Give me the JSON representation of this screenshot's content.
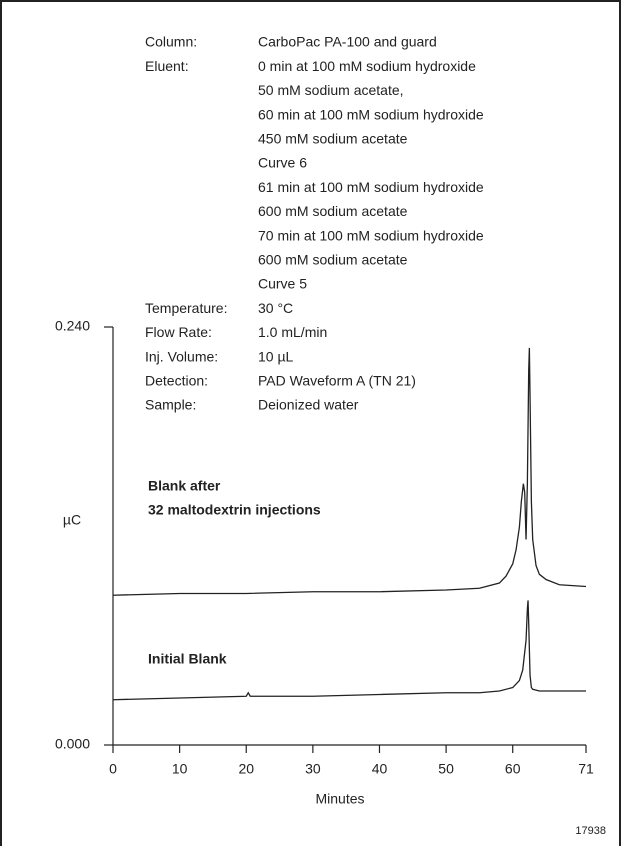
{
  "chart_data": {
    "type": "line",
    "conditions": [
      {
        "label": "Column:",
        "lines": [
          "CarboPac PA-100 and guard"
        ]
      },
      {
        "label": "Eluent:",
        "lines": [
          "0 min at 100 mM sodium hydroxide",
          "50 mM sodium acetate,",
          "60 min at 100 mM sodium hydroxide",
          "450 mM sodium acetate",
          "Curve 6",
          "61 min at 100 mM sodium hydroxide",
          "600 mM sodium acetate",
          "70 min at 100 mM sodium hydroxide",
          "600 mM sodium acetate",
          "Curve 5"
        ]
      },
      {
        "label": "Temperature:",
        "lines": [
          "30 °C"
        ]
      },
      {
        "label": "Flow Rate:",
        "lines": [
          "1.0 mL/min"
        ]
      },
      {
        "label": "Inj. Volume:",
        "lines": [
          "10 µL"
        ]
      },
      {
        "label": "Detection:",
        "lines": [
          "PAD Waveform A (TN 21)"
        ]
      },
      {
        "label": "Sample:",
        "lines": [
          "Deionized water"
        ]
      }
    ],
    "xlabel": "Minutes",
    "ylabel": "µC",
    "figure_id": "17938",
    "xlim": [
      0,
      71
    ],
    "xticks": [
      0,
      10,
      20,
      30,
      40,
      50,
      60,
      71
    ],
    "ylim": [
      0,
      0.24
    ],
    "yticks": [
      {
        "value": 0,
        "label": "0.000"
      },
      {
        "value": 0.24,
        "label": "0.240"
      }
    ],
    "series": [
      {
        "label_lines": [
          "Blank after",
          "32 maltodextrin injections"
        ],
        "color": "#222222",
        "x": [
          0,
          10,
          20,
          30,
          40,
          50,
          55,
          58,
          59,
          60,
          60.5,
          61,
          61.3,
          61.6,
          61.8,
          62.0,
          62.2,
          62.4,
          62.5,
          62.6,
          62.8,
          63,
          63.5,
          64,
          65,
          67,
          71
        ],
        "values": [
          0.086,
          0.087,
          0.087,
          0.088,
          0.088,
          0.089,
          0.09,
          0.093,
          0.097,
          0.104,
          0.112,
          0.125,
          0.14,
          0.15,
          0.145,
          0.118,
          0.15,
          0.215,
          0.228,
          0.2,
          0.14,
          0.118,
          0.103,
          0.098,
          0.095,
          0.092,
          0.091
        ]
      },
      {
        "label_lines": [
          "Initial Blank"
        ],
        "color": "#222222",
        "x": [
          0,
          10,
          20,
          20.3,
          20.6,
          30,
          40,
          50,
          55,
          58,
          60,
          61,
          61.5,
          62,
          62.2,
          62.3,
          62.4,
          62.6,
          62.8,
          63,
          64,
          67,
          71
        ],
        "values": [
          0.026,
          0.027,
          0.028,
          0.03,
          0.028,
          0.028,
          0.029,
          0.03,
          0.03,
          0.031,
          0.033,
          0.037,
          0.043,
          0.06,
          0.078,
          0.083,
          0.07,
          0.04,
          0.033,
          0.032,
          0.031,
          0.031,
          0.031
        ]
      }
    ]
  }
}
